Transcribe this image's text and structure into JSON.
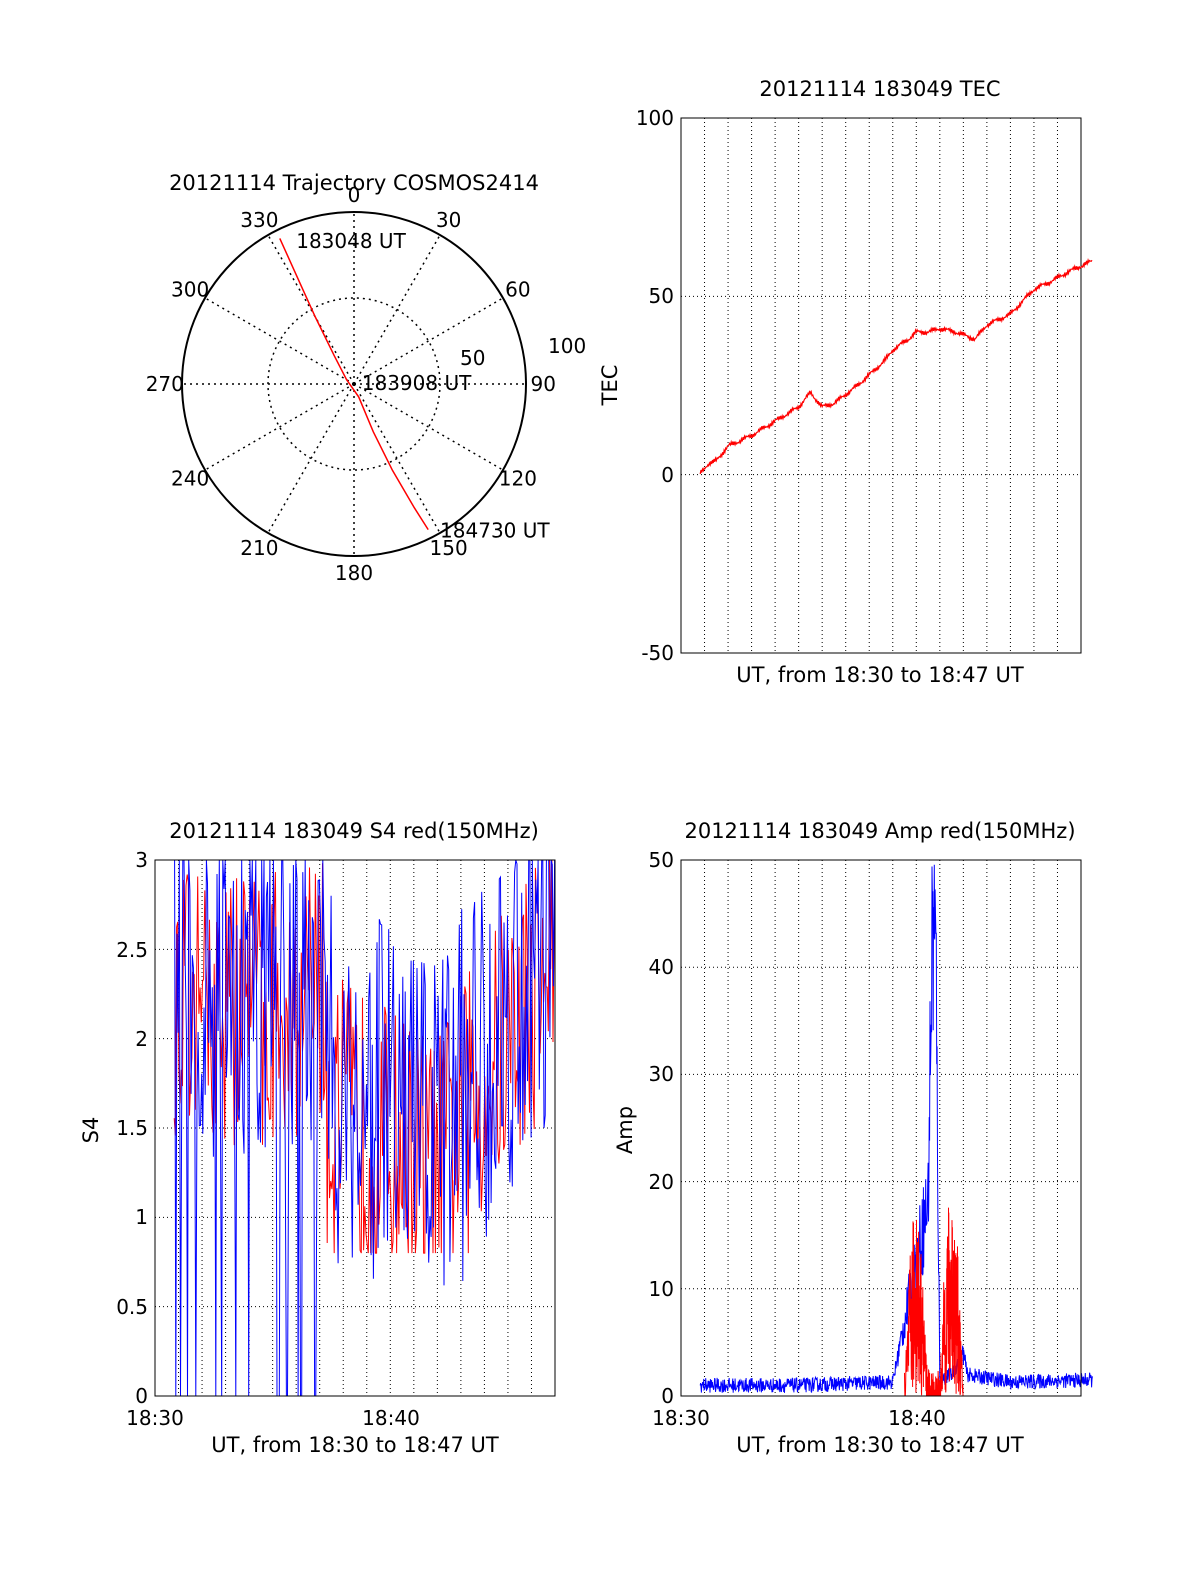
{
  "chart_data": [
    {
      "type": "polar",
      "title": "20121114 Trajectory COSMOS2414",
      "angle_labels": [
        "0",
        "30",
        "60",
        "90",
        "120",
        "150",
        "180",
        "210",
        "240",
        "270",
        "300",
        "330"
      ],
      "radial_labels": [
        "50",
        "100"
      ],
      "rlim": [
        0,
        100
      ],
      "grid": true,
      "series": [
        {
          "color": "#ff0000",
          "points": [
            {
              "az": 333,
              "r": 95
            },
            {
              "az": 332,
              "r": 70
            },
            {
              "az": 330,
              "r": 45
            },
            {
              "az": 325,
              "r": 20
            },
            {
              "az": 300,
              "r": 5
            },
            {
              "az": 160,
              "r": 8
            },
            {
              "az": 158,
              "r": 30
            },
            {
              "az": 156,
              "r": 55
            },
            {
              "az": 154,
              "r": 80
            },
            {
              "az": 153,
              "r": 95
            }
          ]
        }
      ],
      "annotations": [
        {
          "text": "183048 UT",
          "az": 340,
          "r": 88
        },
        {
          "text": "183908 UT",
          "az": 90,
          "r": 8
        },
        {
          "text": "184730 UT",
          "az": 148,
          "r": 101
        }
      ]
    },
    {
      "type": "line",
      "title": "20121114 183049 TEC",
      "xlabel": "UT, from 18:30 to 18:47 UT",
      "ylabel": "TEC",
      "xlim": [
        "18:30",
        "18:47"
      ],
      "ylim": [
        -50,
        100
      ],
      "yticks": [
        "-50",
        "0",
        "50",
        "100"
      ],
      "grid": true,
      "series": [
        {
          "color": "#ff0000",
          "x": [
            "18:30:49",
            "18:31:30",
            "18:32:00",
            "18:33:00",
            "18:34:00",
            "18:35:00",
            "18:35:30",
            "18:36:00",
            "18:36:30",
            "18:37:30",
            "18:38:00",
            "18:38:40",
            "18:39:00",
            "18:39:40",
            "18:40:00",
            "18:40:30",
            "18:41:00",
            "18:41:40",
            "18:42:30",
            "18:43:00",
            "18:44:00",
            "18:45:00",
            "18:45:40",
            "18:46:30",
            "18:47:30"
          ],
          "y": [
            1,
            4,
            8,
            11,
            15,
            19,
            23,
            19,
            20,
            25,
            28,
            32,
            35,
            38,
            40,
            40,
            41,
            40,
            38,
            42,
            45,
            52,
            54,
            57,
            60
          ]
        }
      ]
    },
    {
      "type": "line",
      "title": "20121114 183049 S4 red(150MHz)",
      "xlabel": "UT, from 18:30 to 18:47 UT",
      "ylabel": "S4",
      "xlim": [
        "18:30",
        "18:47"
      ],
      "ylim": [
        0,
        3
      ],
      "xticks": [
        "18:30",
        "18:40"
      ],
      "yticks": [
        "0",
        "0.5",
        "1",
        "1.5",
        "2",
        "2.5",
        "3"
      ],
      "grid": true,
      "series": [
        {
          "color": "#ff0000"
        },
        {
          "color": "#0000ff"
        }
      ]
    },
    {
      "type": "line",
      "title": "20121114 183049 Amp red(150MHz)",
      "xlabel": "UT, from 18:30 to 18:47 UT",
      "ylabel": "Amp",
      "xlim": [
        "18:30",
        "18:47"
      ],
      "ylim": [
        0,
        50
      ],
      "xticks": [
        "18:30",
        "18:40"
      ],
      "yticks": [
        "0",
        "10",
        "20",
        "30",
        "40",
        "50"
      ],
      "grid": true,
      "series": [
        {
          "color": "#0000ff",
          "x": [
            "18:30:49",
            "18:35:00",
            "18:39:00",
            "18:40:30",
            "18:40:40",
            "18:40:45",
            "18:40:50",
            "18:41:00",
            "18:41:30",
            "18:42:00",
            "18:42:10",
            "18:44:00",
            "18:47:30"
          ],
          "y": [
            1,
            1,
            1.3,
            18,
            42,
            44,
            40,
            1.5,
            2,
            4,
            2,
            1.3,
            1.5
          ]
        },
        {
          "color": "#ff0000",
          "x": [
            "18:39:30",
            "18:39:45",
            "18:40:00",
            "18:40:15",
            "18:40:30",
            "18:41:00",
            "18:41:15",
            "18:41:30",
            "18:41:45",
            "18:42:00"
          ],
          "y": [
            0,
            7,
            10,
            6,
            0,
            0,
            8,
            10,
            7,
            0
          ]
        }
      ]
    }
  ]
}
